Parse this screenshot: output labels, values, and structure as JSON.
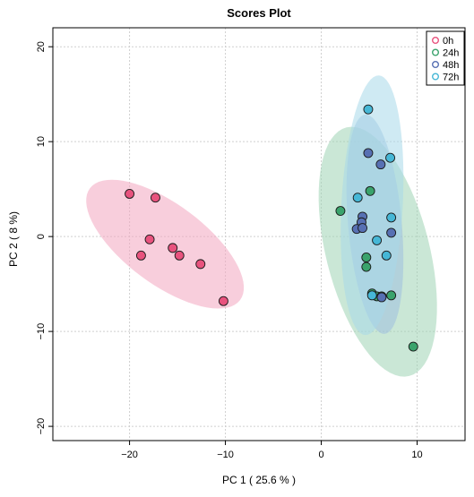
{
  "chart_data": {
    "type": "scatter",
    "title": "Scores Plot",
    "xlabel": "PC 1 ( 25.6 % )",
    "ylabel": "PC 2 ( 8 %)",
    "xlim": [
      -28,
      15
    ],
    "ylim": [
      -21.5,
      22
    ],
    "x_ticks": [
      -20,
      -10,
      0,
      10
    ],
    "y_ticks": [
      -20,
      -10,
      0,
      10,
      20
    ],
    "grid": true,
    "legend_position": "top-right",
    "series": [
      {
        "name": "0h",
        "color": "#e8537e",
        "ellipse_color": "#f3a6bf",
        "points": [
          [
            -20,
            4.5
          ],
          [
            -17.3,
            4.1
          ],
          [
            -17.9,
            -0.3
          ],
          [
            -18.8,
            -2
          ],
          [
            -15.5,
            -1.2
          ],
          [
            -14.8,
            -2
          ],
          [
            -12.6,
            -2.9
          ],
          [
            -10.2,
            -6.8
          ]
        ],
        "ellipse": {
          "cx": -16.3,
          "cy": -0.8,
          "rx": 9.8,
          "ry": 4.2,
          "angle_deg": -37
        }
      },
      {
        "name": "24h",
        "color": "#3aa36c",
        "ellipse_color": "#9fd3b4",
        "points": [
          [
            2,
            2.7
          ],
          [
            5.1,
            4.8
          ],
          [
            4.7,
            -2.2
          ],
          [
            4.7,
            -3.2
          ],
          [
            5.3,
            -6
          ],
          [
            5.8,
            -6.3
          ],
          [
            6.3,
            -6.3
          ],
          [
            7.3,
            -6.2
          ],
          [
            9.6,
            -11.6
          ]
        ],
        "ellipse": {
          "cx": 5.9,
          "cy": -1.6,
          "rx": 5.4,
          "ry": 13.5,
          "angle_deg": 14
        }
      },
      {
        "name": "48h",
        "color": "#5770b3",
        "ellipse_color": "#9fc0e0",
        "points": [
          [
            4.9,
            8.8
          ],
          [
            6.2,
            7.6
          ],
          [
            4.3,
            2.1
          ],
          [
            4.2,
            1.5
          ],
          [
            3.7,
            0.8
          ],
          [
            4.3,
            0.9
          ],
          [
            7.3,
            0.4
          ],
          [
            6.3,
            -6.4
          ]
        ],
        "ellipse": {
          "cx": 5.6,
          "cy": 1.3,
          "rx": 2.8,
          "ry": 11.6,
          "angle_deg": 5
        }
      },
      {
        "name": "72h",
        "color": "#46b7d6",
        "ellipse_color": "#a7d8ea",
        "points": [
          [
            4.9,
            13.4
          ],
          [
            7.2,
            8.3
          ],
          [
            3.8,
            4.1
          ],
          [
            7.3,
            2
          ],
          [
            5.8,
            -0.4
          ],
          [
            6.8,
            -2
          ],
          [
            5.3,
            -6.2
          ]
        ],
        "ellipse": {
          "cx": 5.3,
          "cy": 3.3,
          "rx": 3.2,
          "ry": 13.7,
          "angle_deg": -3
        }
      }
    ]
  }
}
